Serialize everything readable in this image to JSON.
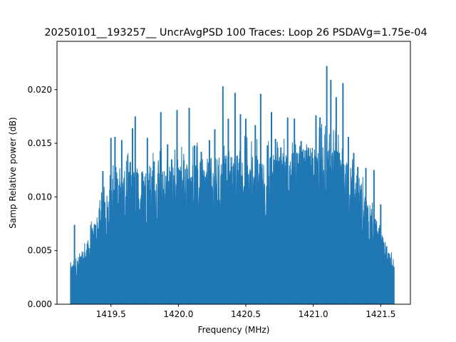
{
  "chart_data": {
    "type": "line",
    "title": "20250101__193257__  UncrAvgPSD 100 Traces: Loop 26 PSDAVg=1.75e-04",
    "xlabel": "Frequency (MHz)",
    "ylabel": "Samp Relative power (dB)",
    "xlim": [
      1419.1,
      1421.72
    ],
    "ylim": [
      0,
      0.0245
    ],
    "x_ticks": [
      "1419.5",
      "1420.0",
      "1420.5",
      "1421.0",
      "1421.5"
    ],
    "x_tick_values": [
      1419.5,
      1420.0,
      1420.5,
      1421.0,
      1421.5
    ],
    "y_ticks": [
      "0.000",
      "0.005",
      "0.010",
      "0.015",
      "0.020"
    ],
    "y_tick_values": [
      0.0,
      0.005,
      0.01,
      0.015,
      0.02
    ],
    "grid": false,
    "x_range": [
      1419.2,
      1421.6
    ],
    "color": "#1f77b4",
    "envelope": {
      "x": [
        1419.2,
        1419.25,
        1419.3,
        1419.35,
        1419.4,
        1419.45,
        1419.5,
        1419.55,
        1419.6,
        1419.65,
        1419.7,
        1419.75,
        1419.8,
        1419.85,
        1419.9,
        1419.95,
        1420.0,
        1420.05,
        1420.1,
        1420.15,
        1420.2,
        1420.25,
        1420.3,
        1420.35,
        1420.4,
        1420.45,
        1420.5,
        1420.55,
        1420.6,
        1420.65,
        1420.7,
        1420.75,
        1420.8,
        1420.85,
        1420.9,
        1420.95,
        1421.0,
        1421.05,
        1421.1,
        1421.15,
        1421.2,
        1421.25,
        1421.3,
        1421.35,
        1421.4,
        1421.45,
        1421.5,
        1421.55,
        1421.6
      ],
      "y": [
        0.0032,
        0.0038,
        0.0045,
        0.0058,
        0.0075,
        0.0088,
        0.0098,
        0.0105,
        0.0108,
        0.011,
        0.0112,
        0.0113,
        0.0112,
        0.0112,
        0.0113,
        0.0113,
        0.0113,
        0.0115,
        0.0116,
        0.0117,
        0.0118,
        0.0119,
        0.012,
        0.0121,
        0.0122,
        0.0122,
        0.0122,
        0.0121,
        0.0121,
        0.0121,
        0.0121,
        0.0122,
        0.0123,
        0.0124,
        0.0125,
        0.0127,
        0.0129,
        0.013,
        0.013,
        0.0128,
        0.0124,
        0.0117,
        0.0108,
        0.0097,
        0.0085,
        0.0073,
        0.006,
        0.0046,
        0.0033
      ]
    },
    "peaks": {
      "x": [
        1419.23,
        1419.44,
        1419.5,
        1419.53,
        1419.58,
        1419.66,
        1419.68,
        1419.73,
        1419.77,
        1419.82,
        1419.87,
        1419.92,
        1419.95,
        1419.99,
        1420.04,
        1420.08,
        1420.12,
        1420.17,
        1420.23,
        1420.27,
        1420.33,
        1420.37,
        1420.42,
        1420.46,
        1420.5,
        1420.57,
        1420.61,
        1420.66,
        1420.69,
        1420.72,
        1420.76,
        1420.81,
        1420.86,
        1420.91,
        1420.97,
        1421.02,
        1421.05,
        1421.1,
        1421.13,
        1421.17,
        1421.22,
        1421.26,
        1421.3,
        1421.33,
        1421.39,
        1421.45,
        1421.5
      ],
      "y": [
        0.0074,
        0.0124,
        0.0155,
        0.0156,
        0.0153,
        0.0164,
        0.0175,
        0.0123,
        0.0155,
        0.0133,
        0.0179,
        0.0149,
        0.0135,
        0.0181,
        0.0134,
        0.0183,
        0.0148,
        0.0142,
        0.0153,
        0.0163,
        0.0203,
        0.0173,
        0.0197,
        0.0177,
        0.0173,
        0.0167,
        0.0196,
        0.0148,
        0.0179,
        0.0154,
        0.0146,
        0.0174,
        0.0173,
        0.0152,
        0.0138,
        0.0176,
        0.0174,
        0.0222,
        0.0209,
        0.0193,
        0.0206,
        0.0156,
        0.0141,
        0.0128,
        0.0127,
        0.0125,
        0.0093
      ]
    }
  }
}
